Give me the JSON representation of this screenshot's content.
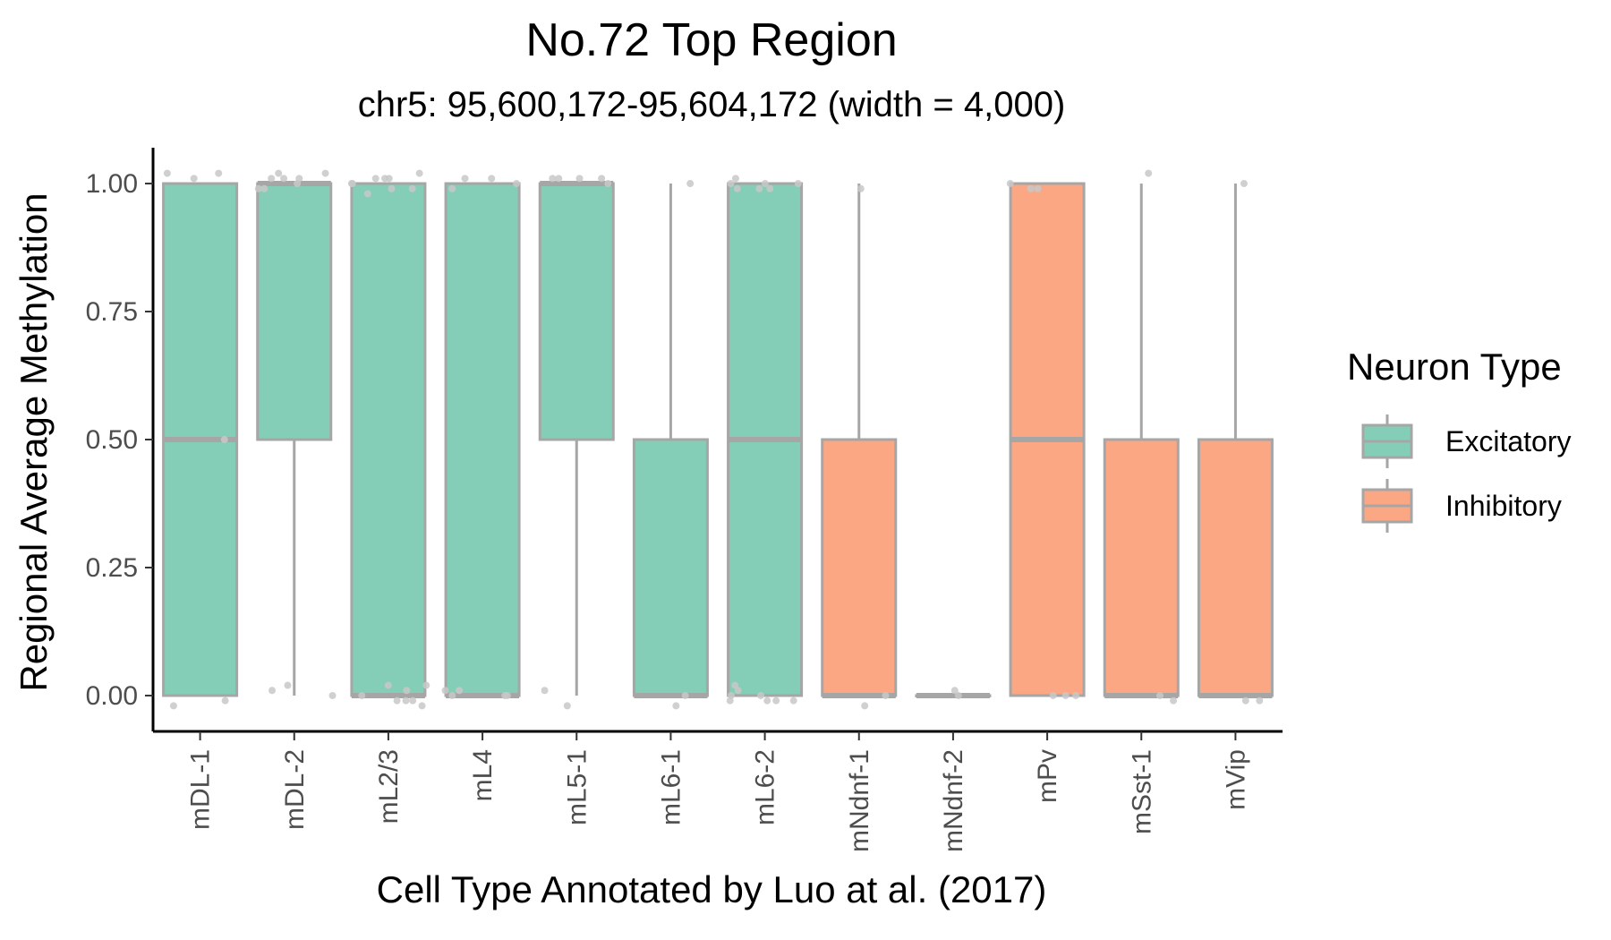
{
  "chart_data": {
    "type": "box",
    "title": "No.72 Top Region",
    "subtitle": "chr5: 95,600,172-95,604,172 (width = 4,000)",
    "xlabel": "Cell Type Annotated by Luo at al. (2017)",
    "ylabel": "Regional Average Methylation",
    "ylim": [
      -0.07,
      1.07
    ],
    "yticks": [
      0.0,
      0.25,
      0.5,
      0.75,
      1.0
    ],
    "ytick_labels": [
      "0.00",
      "0.25",
      "0.50",
      "0.75",
      "1.00"
    ],
    "grid": false,
    "legend": {
      "title": "Neuron Type",
      "placement": "right",
      "entries": [
        {
          "label": "Excitatory",
          "color": "#84cdb6"
        },
        {
          "label": "Inhibitory",
          "color": "#fca783"
        }
      ]
    },
    "box_outline_color": "#a6a6a6",
    "point_color": "#c8c8c8",
    "categories": [
      "mDL-1",
      "mDL-2",
      "mL2/3",
      "mL4",
      "mL5-1",
      "mL6-1",
      "mL6-2",
      "mNdnf-1",
      "mNdnf-2",
      "mPv",
      "mSst-1",
      "mVip"
    ],
    "boxes": [
      {
        "category": "mDL-1",
        "group": "Excitatory",
        "min": 0.0,
        "q1": 0.0,
        "median": 0.5,
        "q3": 1.0,
        "max": 1.0,
        "points": [
          1.02,
          1.02,
          1.01,
          -0.01,
          -0.02,
          0.5
        ]
      },
      {
        "category": "mDL-2",
        "group": "Excitatory",
        "min": 0.0,
        "q1": 0.5,
        "median": 1.0,
        "q3": 1.0,
        "max": 1.0,
        "points": [
          1.01,
          1.01,
          1.02,
          1.0,
          0.99,
          0.99,
          1.02,
          1.01,
          0.02,
          0.0,
          0.01
        ]
      },
      {
        "category": "mL2/3",
        "group": "Excitatory",
        "min": 0.0,
        "q1": 0.0,
        "median": 0.0,
        "q3": 1.0,
        "max": 1.0,
        "points": [
          1.01,
          1.01,
          1.02,
          1.0,
          0.99,
          1.0,
          0.99,
          0.98,
          1.01,
          -0.01,
          -0.01,
          0.02,
          0.02,
          0.01,
          0.0,
          -0.01,
          -0.02
        ]
      },
      {
        "category": "mL4",
        "group": "Excitatory",
        "min": 0.0,
        "q1": 0.0,
        "median": 0.0,
        "q3": 1.0,
        "max": 1.0,
        "points": [
          1.01,
          1.0,
          1.01,
          0.99,
          0.01,
          0.0,
          0.0,
          0.01,
          0.0
        ]
      },
      {
        "category": "mL5-1",
        "group": "Excitatory",
        "min": 0.0,
        "q1": 0.5,
        "median": 1.0,
        "q3": 1.0,
        "max": 1.0,
        "points": [
          1.01,
          1.01,
          1.0,
          1.01,
          1.01,
          0.01,
          -0.02
        ]
      },
      {
        "category": "mL6-1",
        "group": "Excitatory",
        "min": 0.0,
        "q1": 0.0,
        "median": 0.0,
        "q3": 0.5,
        "max": 1.0,
        "points": [
          1.0,
          -0.02,
          0.0
        ]
      },
      {
        "category": "mL6-2",
        "group": "Excitatory",
        "min": 0.0,
        "q1": 0.0,
        "median": 0.5,
        "q3": 1.0,
        "max": 1.0,
        "points": [
          1.0,
          0.99,
          1.01,
          0.99,
          1.0,
          0.99,
          1.0,
          -0.01,
          -0.01,
          0.0,
          -0.01,
          -0.01,
          0.02,
          0.01,
          0.0
        ]
      },
      {
        "category": "mNdnf-1",
        "group": "Inhibitory",
        "min": 0.0,
        "q1": 0.0,
        "median": 0.0,
        "q3": 0.5,
        "max": 1.0,
        "points": [
          0.99,
          -0.02,
          0.0
        ]
      },
      {
        "category": "mNdnf-2",
        "group": "Inhibitory",
        "min": 0.0,
        "q1": 0.0,
        "median": 0.0,
        "q3": 0.0,
        "max": 0.0,
        "points": [
          0.01,
          0.0
        ]
      },
      {
        "category": "mPv",
        "group": "Inhibitory",
        "min": 0.0,
        "q1": 0.0,
        "median": 0.5,
        "q3": 1.0,
        "max": 1.0,
        "points": [
          1.0,
          0.99,
          0.99,
          0.0,
          0.0,
          0.0
        ]
      },
      {
        "category": "mSst-1",
        "group": "Inhibitory",
        "min": 0.0,
        "q1": 0.0,
        "median": 0.0,
        "q3": 0.5,
        "max": 1.0,
        "points": [
          1.02,
          -0.01,
          0.0
        ]
      },
      {
        "category": "mVip",
        "group": "Inhibitory",
        "min": 0.0,
        "q1": 0.0,
        "median": 0.0,
        "q3": 0.5,
        "max": 1.0,
        "points": [
          1.0,
          -0.01,
          -0.01
        ]
      }
    ]
  }
}
